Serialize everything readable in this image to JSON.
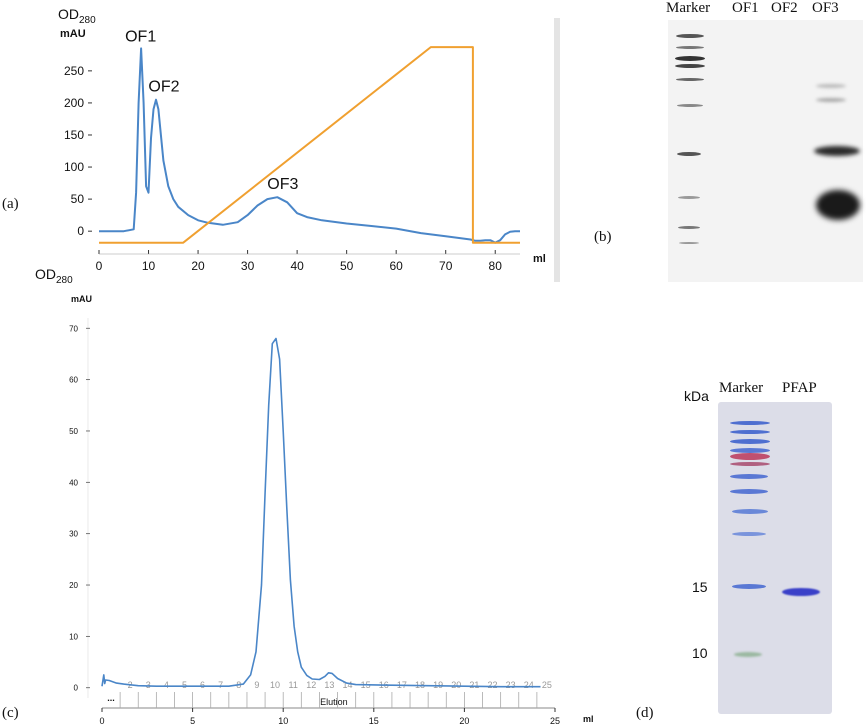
{
  "panels": {
    "a": "(a)",
    "b": "(b)",
    "c": "(c)",
    "d": "(d)"
  },
  "colors": {
    "absorbance": "#4a86c8",
    "gradient": "#f0a030",
    "marker_blue": "#4f6fd0",
    "marker_red": "#c05070",
    "pfap_band": "#3a40c8"
  },
  "chart_data": [
    {
      "type": "line",
      "panel": "a",
      "title": "",
      "ylabel_main": "OD",
      "ylabel_sub": "280",
      "y_unit": "mAU",
      "xlabel": "ml",
      "xlim": [
        0,
        85
      ],
      "ylim": [
        -20,
        295
      ],
      "x_ticks": [
        "0",
        "10",
        "20",
        "30",
        "40",
        "50",
        "60",
        "70",
        "80"
      ],
      "y_ticks": [
        "0",
        "50",
        "100",
        "150",
        "200",
        "250"
      ],
      "annotations": [
        {
          "text": "OF1",
          "x": 8.5,
          "y": 283
        },
        {
          "text": "OF2",
          "x": 12,
          "y": 205
        },
        {
          "text": "OF3",
          "x": 36,
          "y": 53
        }
      ],
      "series": [
        {
          "x": [
            0,
            5,
            7,
            7.5,
            8,
            8.5,
            9,
            9.5,
            10,
            10.5,
            11,
            11.5,
            12,
            12.5,
            13,
            14,
            15,
            16,
            18,
            20,
            22,
            25,
            28,
            30,
            32,
            34,
            36,
            38,
            40,
            42,
            45,
            50,
            55,
            60,
            65,
            70,
            75,
            76,
            77,
            78,
            79,
            80,
            81,
            82,
            83,
            84,
            85
          ],
          "y": [
            0,
            0,
            3,
            60,
            200,
            285,
            200,
            70,
            60,
            145,
            190,
            205,
            190,
            150,
            110,
            70,
            50,
            38,
            25,
            17,
            13,
            10,
            14,
            25,
            40,
            50,
            53,
            45,
            28,
            22,
            17,
            12,
            8,
            4,
            -3,
            -8,
            -13,
            -15,
            -15,
            -14,
            -14,
            -18,
            -14,
            -5,
            -1,
            0,
            0
          ]
        },
        {
          "x": [
            0,
            17,
            67,
            75.5,
            75.5,
            85
          ],
          "y": [
            -18,
            -18,
            287,
            287,
            -18,
            -18
          ]
        }
      ]
    },
    {
      "type": "line",
      "panel": "c",
      "title": "",
      "ylabel_main": "OD",
      "ylabel_sub": "280",
      "y_unit": "mAU",
      "xlabel": "ml",
      "xlim": [
        0,
        25
      ],
      "ylim": [
        -2,
        72
      ],
      "x_ticks": [
        "0",
        "5",
        "10",
        "15",
        "20",
        "25"
      ],
      "y_ticks": [
        "0",
        "10",
        "20",
        "30",
        "40",
        "50",
        "60",
        "70"
      ],
      "fractions": [
        "...",
        "2",
        "3",
        "4",
        "5",
        "6",
        "7",
        "8",
        "9",
        "10",
        "11",
        "12",
        "13",
        "14",
        "15",
        "16",
        "17",
        "18",
        "19",
        "20",
        "21",
        "22",
        "23",
        "24",
        "25"
      ],
      "fraction_x": [
        1.0,
        1.0,
        2.0,
        3.0,
        4.0,
        5.0,
        6.0,
        7.0,
        8.0,
        9.0,
        10.0,
        11.0,
        12.0,
        13.0,
        14.0,
        15.0,
        16.0,
        17.0,
        18.0,
        19.0,
        20.0,
        21.0,
        22.0,
        23.0,
        24.0
      ],
      "annotations": [
        {
          "text": "Elution",
          "x": 12.8,
          "y": -0.4
        }
      ],
      "series": [
        {
          "x": [
            0,
            0.1,
            0.15,
            0.2,
            0.4,
            0.8,
            1.2,
            2,
            3,
            5,
            7,
            7.8,
            8.2,
            8.5,
            8.8,
            9.0,
            9.2,
            9.4,
            9.6,
            9.8,
            10.0,
            10.2,
            10.4,
            10.6,
            10.8,
            11.0,
            11.3,
            11.6,
            12.0,
            12.3,
            12.5,
            12.7,
            13.0,
            13.5,
            14,
            16,
            18,
            20,
            22,
            24.2
          ],
          "y": [
            0.3,
            2.5,
            0.8,
            1.5,
            1.4,
            0.9,
            0.7,
            0.4,
            0.3,
            0.3,
            0.3,
            0.7,
            2.5,
            7,
            20,
            38,
            55,
            67,
            68,
            64,
            50,
            35,
            21,
            12,
            7,
            4,
            2.4,
            1.7,
            1.6,
            2.2,
            2.9,
            2.8,
            1.8,
            0.9,
            0.6,
            0.5,
            0.4,
            0.3,
            0.2,
            0.2
          ]
        }
      ]
    }
  ],
  "gel_b": {
    "lanes": [
      "Marker",
      "OF1",
      "OF2",
      "OF3"
    ]
  },
  "gel_d": {
    "unit": "kDa",
    "lanes": [
      "Marker",
      "PFAP"
    ],
    "kda_marks": [
      "15",
      "10"
    ]
  }
}
